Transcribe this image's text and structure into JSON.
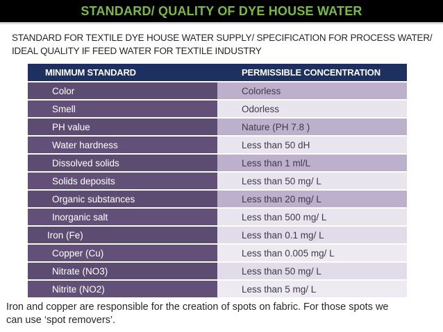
{
  "slide": {
    "title": "STANDARD/ QUALITY OF DYE HOUSE WATER",
    "subtitle_line1": "STANDARD FOR TEXTILE DYE HOUSE WATER SUPPLY/ SPECIFICATION FOR PROCESS WATER/",
    "subtitle_line2": "IDEAL QUALITY IF FEED WATER FOR TEXTILE INDUSTRY",
    "footer_line1": "Iron and copper are responsible for the creation of spots on fabric. For those spots we",
    "footer_line2": "can use ‘spot removers’."
  },
  "table": {
    "headers": [
      "MINIMUM STANDARD",
      "PERMISSIBLE CONCENTRATION"
    ],
    "rows": [
      {
        "standard": "Color",
        "value": "Colorless",
        "standard_bg": "#5d4c72",
        "value_bg": "#bcb0cc"
      },
      {
        "standard": "Smell",
        "value": "Odorless",
        "standard_bg": "#625078",
        "value_bg": "#e9e5ef"
      },
      {
        "standard": "PH value",
        "value": "Nature (PH 7.8 )",
        "standard_bg": "#5d4c72",
        "value_bg": "#bcb0cc"
      },
      {
        "standard": "Water hardness",
        "value": "Less than 50 dH",
        "standard_bg": "#625078",
        "value_bg": "#e9e5ef"
      },
      {
        "standard": "Dissolved solids",
        "value": "Less than 1 ml/L",
        "standard_bg": "#5d4c72",
        "value_bg": "#bcb0cc"
      },
      {
        "standard": "Solids deposits",
        "value": "Less than 50 mg/ L",
        "standard_bg": "#625078",
        "value_bg": "#e9e5ef"
      },
      {
        "standard": "Organic substances",
        "value": "Less than 20 mg/ L",
        "standard_bg": "#5d4c72",
        "value_bg": "#bcb0cc"
      },
      {
        "standard": "Inorganic salt",
        "value": "Less than 500 mg/ L",
        "standard_bg": "#625078",
        "value_bg": "#e9e5ef"
      },
      {
        "standard": "Iron (Fe)",
        "value": "Less than 0.1 mg/ L",
        "standard_bg": "#5d4c72",
        "value_bg": "#e2dcea"
      },
      {
        "standard": "Copper (Cu)",
        "value": "Less than 0.005 mg/ L",
        "standard_bg": "#625078",
        "value_bg": "#edeaf2"
      },
      {
        "standard": "Nitrate (NO3)",
        "value": "Less than 50 mg/ L",
        "standard_bg": "#5d4c72",
        "value_bg": "#e2dcea"
      },
      {
        "standard": "Nitrite (NO2)",
        "value": "Less than 5 mg/ L",
        "standard_bg": "#625078",
        "value_bg": "#edeaf2"
      }
    ]
  },
  "colors": {
    "title_green": "#7aba47",
    "title_bar_bg": "#000000",
    "header_bg": "#1e3060",
    "header_text": "#ffffff",
    "left_cell_text": "#ffffff",
    "value_text": "#403a48",
    "body_text": "#262626"
  }
}
